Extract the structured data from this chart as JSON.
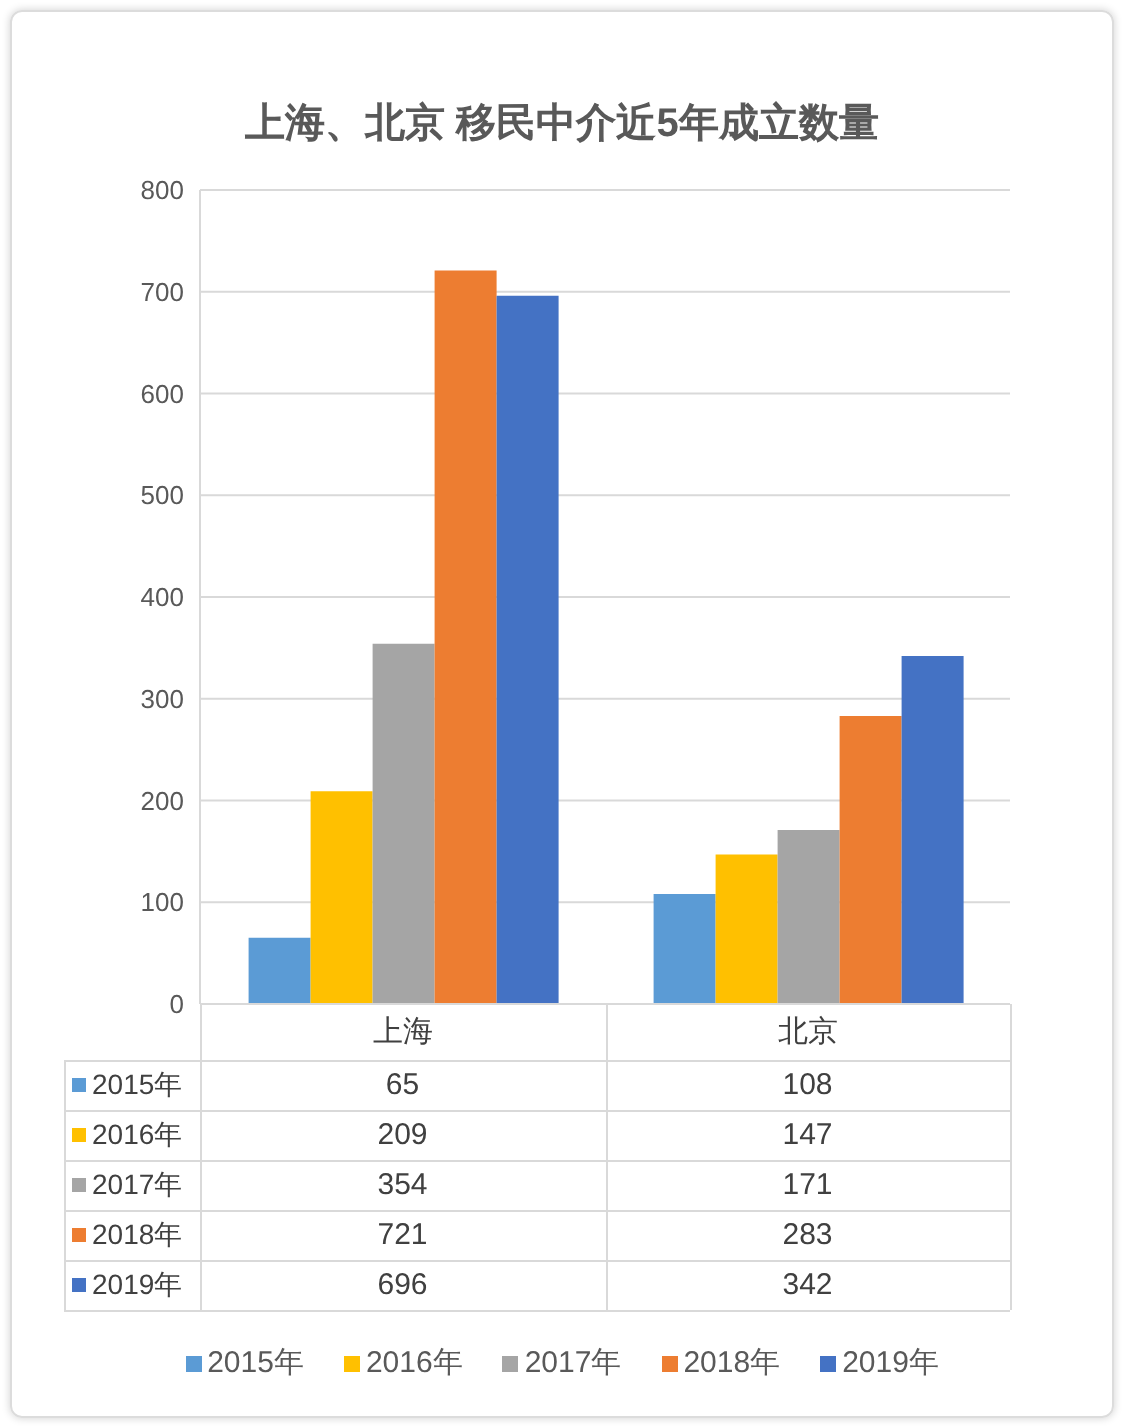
{
  "chart_data": {
    "type": "bar",
    "title": "上海、北京 移民中介近5年成立数量",
    "categories": [
      "上海",
      "北京"
    ],
    "series": [
      {
        "name": "2015年",
        "color": "#5b9bd5",
        "values": [
          65,
          108
        ]
      },
      {
        "name": "2016年",
        "color": "#ffc000",
        "values": [
          209,
          147
        ]
      },
      {
        "name": "2017年",
        "color": "#a5a5a5",
        "values": [
          354,
          171
        ]
      },
      {
        "name": "2018年",
        "color": "#ed7d31",
        "values": [
          721,
          283
        ]
      },
      {
        "name": "2019年",
        "color": "#4472c4",
        "values": [
          696,
          342
        ]
      }
    ],
    "ylim": [
      0,
      800
    ],
    "yticks": [
      0,
      100,
      200,
      300,
      400,
      500,
      600,
      700,
      800
    ],
    "grid": "y",
    "legend": "bottom",
    "data_labels": true
  }
}
